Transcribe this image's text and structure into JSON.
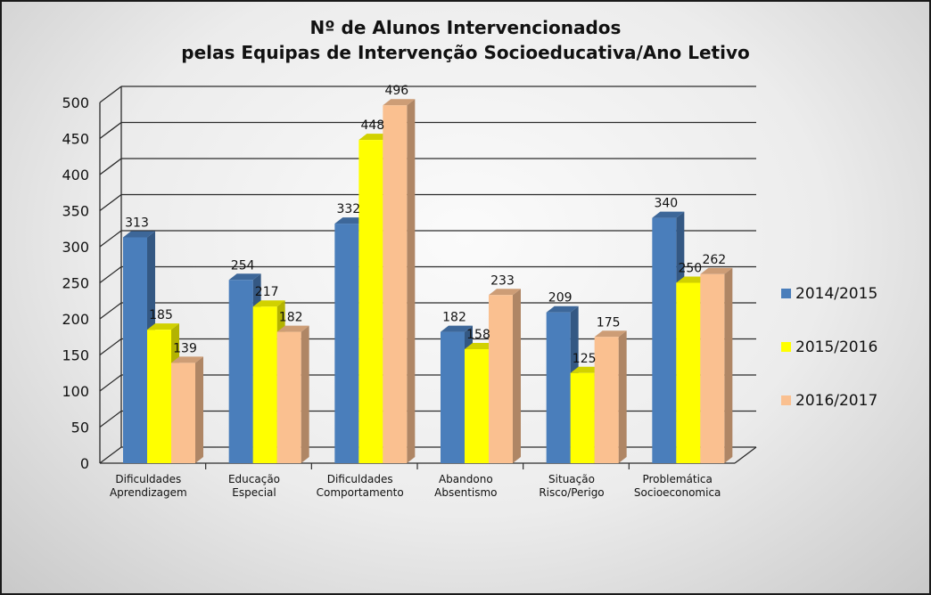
{
  "chart_data": {
    "type": "bar",
    "title_lines": [
      "Nº de Alunos Intervencionados",
      "pelas Equipas de Intervenção Socioeducativa/Ano Letivo"
    ],
    "categories": [
      [
        "Dificuldades",
        "Aprendizagem"
      ],
      [
        "Educação",
        "Especial"
      ],
      [
        "Dificuldades",
        "Comportamento"
      ],
      [
        "Abandono",
        "Absentismo"
      ],
      [
        "Situação",
        "Risco/Perigo"
      ],
      [
        "Problemática",
        "Socioeconomica"
      ]
    ],
    "series": [
      {
        "name": "2014/2015",
        "values": [
          313,
          254,
          332,
          182,
          209,
          340
        ],
        "color": "#4a7ebb"
      },
      {
        "name": "2015/2016",
        "values": [
          185,
          217,
          448,
          158,
          125,
          250
        ],
        "color": "#ffff00"
      },
      {
        "name": "2016/2017",
        "values": [
          139,
          182,
          496,
          233,
          175,
          262
        ],
        "color": "#fac090"
      }
    ],
    "ylim": [
      0,
      500
    ],
    "yticks": [
      0,
      50,
      100,
      150,
      200,
      250,
      300,
      350,
      400,
      450,
      500
    ],
    "grid": true,
    "legend_position": "right"
  }
}
